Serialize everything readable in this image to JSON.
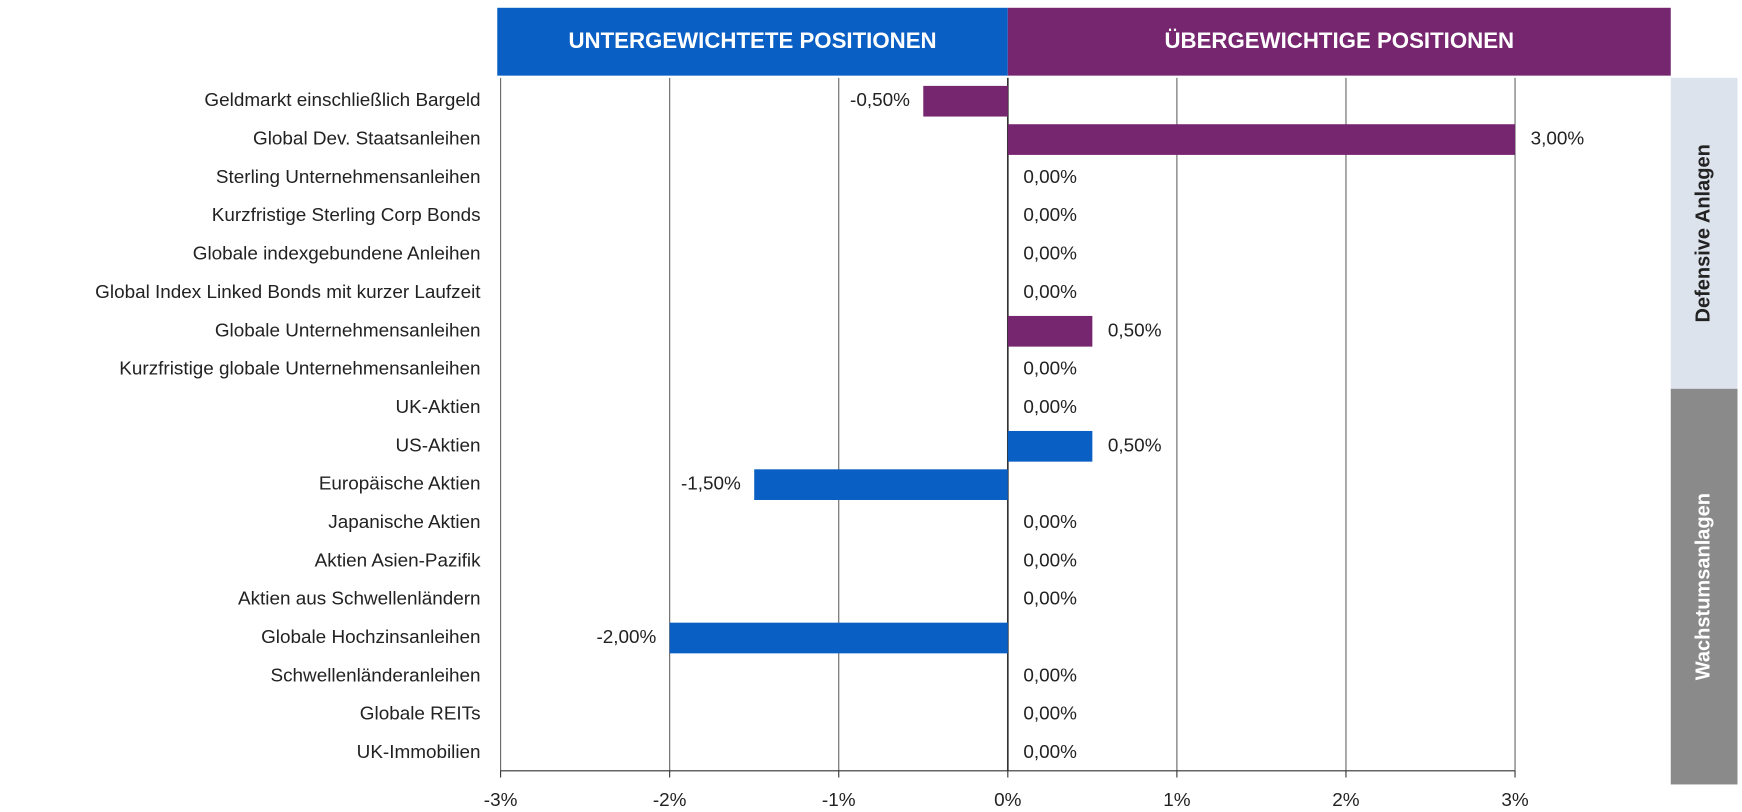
{
  "chart_data": {
    "type": "bar",
    "orientation": "horizontal",
    "header_left": {
      "label": "UNTERGEWICHTETE POSITIONEN",
      "color": "#0a5fc4"
    },
    "header_right": {
      "label": "ÜBERGEWICHTIGE POSITIONEN",
      "color": "#76256f"
    },
    "categories": [
      "Geldmarkt einschließlich Bargeld",
      "Global Dev. Staatsanleihen",
      "Sterling Unternehmensanleihen",
      "Kurzfristige Sterling Corp Bonds",
      "Globale indexgebundene Anleihen",
      "Global Index Linked Bonds mit kurzer Laufzeit",
      "Globale Unternehmensanleihen",
      "Kurzfristige globale Unternehmensanleihen",
      "UK-Aktien",
      "US-Aktien",
      "Europäische Aktien",
      "Japanische Aktien",
      "Aktien Asien-Pazifik",
      "Aktien aus Schwellenländern",
      "Globale Hochzinsanleihen",
      "Schwellenländeranleihen",
      "Globale REITs",
      "UK-Immobilien"
    ],
    "series": [
      {
        "name": "Defensive Anlagen",
        "color": "#76256f",
        "band_color": "#dde3ec",
        "text_color": "#222222",
        "values": [
          -0.5,
          3,
          0,
          0,
          0,
          0,
          0.5,
          0,
          null,
          null,
          null,
          null,
          null,
          null,
          null,
          null,
          null,
          null
        ],
        "value_labels": [
          "-0,50%",
          "3,00%",
          "0,00%",
          "0,00%",
          "0,00%",
          "0,00%",
          "0,50%",
          "0,00%",
          null,
          null,
          null,
          null,
          null,
          null,
          null,
          null,
          null,
          null
        ]
      },
      {
        "name": "Wachstumsanlagen",
        "color": "#0a5fc4",
        "band_color": "#8a8a8a",
        "text_color": "#ffffff",
        "values": [
          null,
          null,
          null,
          null,
          null,
          null,
          null,
          null,
          0,
          0.5,
          -1.5,
          0,
          0,
          0,
          -2,
          0,
          0,
          0
        ],
        "value_labels": [
          null,
          null,
          null,
          null,
          null,
          null,
          null,
          null,
          "0,00%",
          "0,50%",
          "-1,50%",
          "0,00%",
          "0,00%",
          "0,00%",
          "-2,00%",
          "0,00%",
          "0,00%",
          "0,00%"
        ]
      }
    ],
    "xlim": [
      -3,
      3
    ],
    "xticks": [
      {
        "value": -3,
        "label": "-3%"
      },
      {
        "value": -2,
        "label": "-2%"
      },
      {
        "value": -1,
        "label": "-1%"
      },
      {
        "value": 0,
        "label": "0%"
      },
      {
        "value": 1,
        "label": "1%"
      },
      {
        "value": 2,
        "label": "2%"
      },
      {
        "value": 3,
        "label": "3%"
      }
    ],
    "grid": true
  }
}
